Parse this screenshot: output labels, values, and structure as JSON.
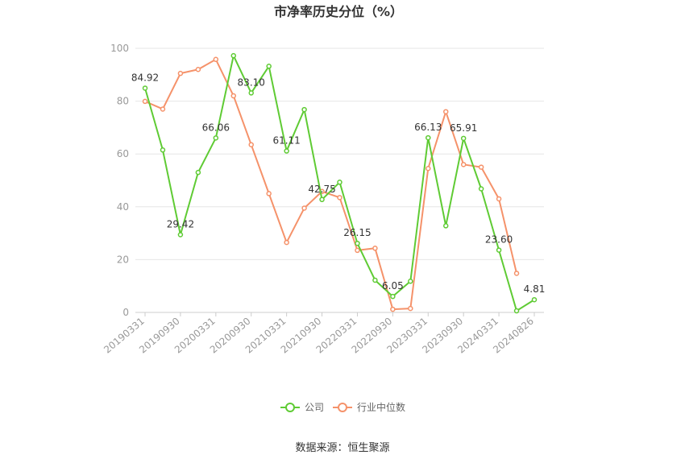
{
  "chart_data": {
    "type": "line",
    "title": "市净率历史分位（%）",
    "x": [
      "20190331",
      "20190630",
      "20190930",
      "20191231",
      "20200331",
      "20200630",
      "20200930",
      "20201231",
      "20210331",
      "20210630",
      "20210930",
      "20211231",
      "20220331",
      "20220630",
      "20220930",
      "20221231",
      "20230331",
      "20230630",
      "20230930",
      "20231231",
      "20240331",
      "20240630",
      "20240826"
    ],
    "x_tick_labels": [
      "20190331",
      "20190930",
      "20200331",
      "20200930",
      "20210331",
      "20210930",
      "20220331",
      "20220930",
      "20230331",
      "20230930",
      "20240331",
      "20240826"
    ],
    "y_ticks": [
      "0",
      "20",
      "40",
      "60",
      "80",
      "100"
    ],
    "ylim": [
      0,
      100
    ],
    "grid": true,
    "legend_position": "bottom",
    "series": [
      {
        "name": "公司",
        "color": "#5fcb34",
        "values": [
          84.92,
          61.5,
          29.42,
          53.0,
          66.06,
          97.2,
          83.1,
          93.2,
          61.11,
          76.8,
          42.75,
          49.3,
          26.15,
          12.2,
          6.05,
          11.8,
          66.13,
          32.8,
          65.91,
          46.8,
          23.6,
          0.6,
          4.81
        ],
        "data_labels": [
          "84.92",
          null,
          "29.42",
          null,
          "66.06",
          null,
          "83.10",
          null,
          "61.11",
          null,
          "42.75",
          null,
          "26.15",
          null,
          "6.05",
          null,
          "66.13",
          null,
          "65.91",
          null,
          "23.60",
          null,
          "4.81"
        ]
      },
      {
        "name": "行业中位数",
        "color": "#f5926a",
        "values": [
          79.9,
          77.0,
          90.5,
          92.0,
          95.8,
          82.0,
          63.5,
          45.0,
          26.5,
          39.5,
          45.8,
          43.5,
          23.5,
          24.3,
          1.2,
          1.5,
          54.5,
          76.0,
          56.0,
          55.0,
          43.0,
          14.8,
          null
        ]
      }
    ],
    "source": "数据来源：恒生聚源"
  }
}
